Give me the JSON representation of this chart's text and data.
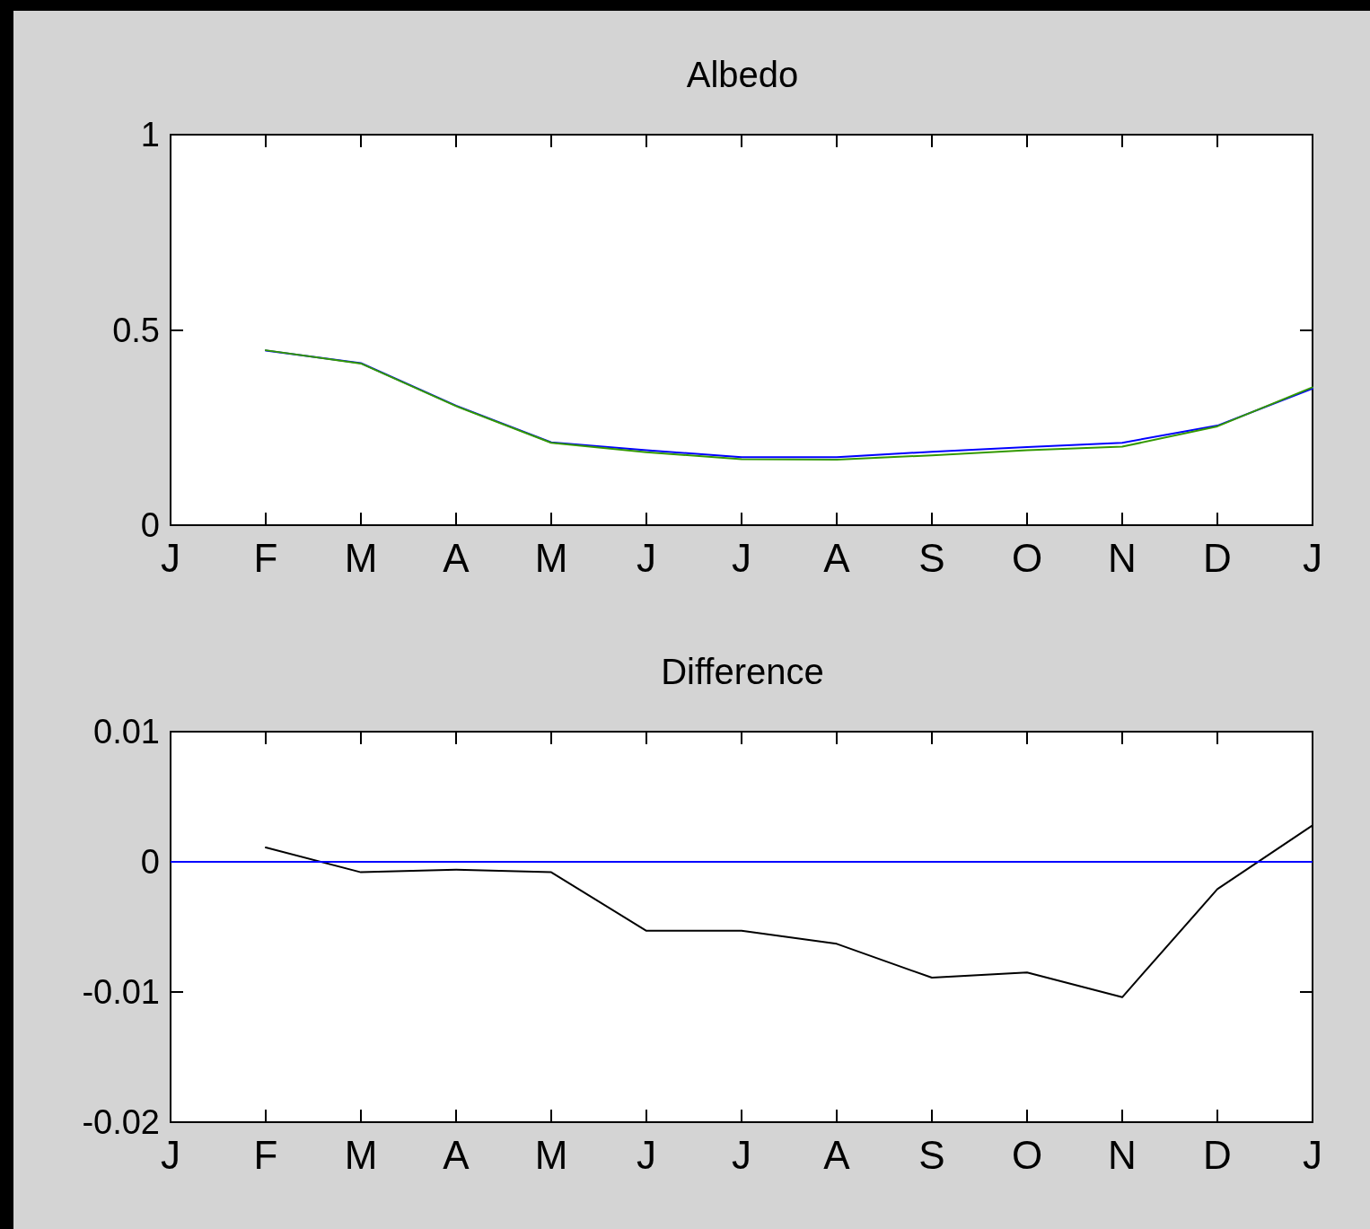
{
  "chart_data": [
    {
      "type": "line",
      "title": "Albedo",
      "categories": [
        "J",
        "F",
        "M",
        "A",
        "M",
        "J",
        "J",
        "A",
        "S",
        "O",
        "N",
        "D",
        "J"
      ],
      "series": [
        {
          "color": "#0000ff",
          "values": [
            null,
            0.447,
            0.415,
            0.306,
            0.212,
            0.192,
            0.174,
            0.174,
            0.188,
            0.2,
            0.211,
            0.255,
            0.35
          ]
        },
        {
          "color": "#339900",
          "values": [
            null,
            0.448,
            0.414,
            0.305,
            0.211,
            0.187,
            0.169,
            0.168,
            0.179,
            0.192,
            0.201,
            0.253,
            0.353
          ]
        }
      ],
      "ylim": [
        0,
        1
      ],
      "yticks": [
        0,
        0.5,
        1
      ],
      "grid": false
    },
    {
      "type": "line",
      "title": "Difference",
      "categories": [
        "J",
        "F",
        "M",
        "A",
        "M",
        "J",
        "J",
        "A",
        "S",
        "O",
        "N",
        "D",
        "J"
      ],
      "series": [
        {
          "color": "#000000",
          "values": [
            null,
            0.0011,
            -0.0008,
            -0.0006,
            -0.0008,
            -0.0053,
            -0.0053,
            -0.0063,
            -0.0089,
            -0.0085,
            -0.0104,
            -0.0021,
            0.0028
          ]
        }
      ],
      "ref_lines": [
        {
          "axis": "y",
          "value": 0,
          "color": "#0000ff"
        }
      ],
      "ylim": [
        -0.02,
        0.01
      ],
      "yticks": [
        -0.02,
        -0.01,
        0,
        0.01
      ],
      "grid": false
    }
  ]
}
